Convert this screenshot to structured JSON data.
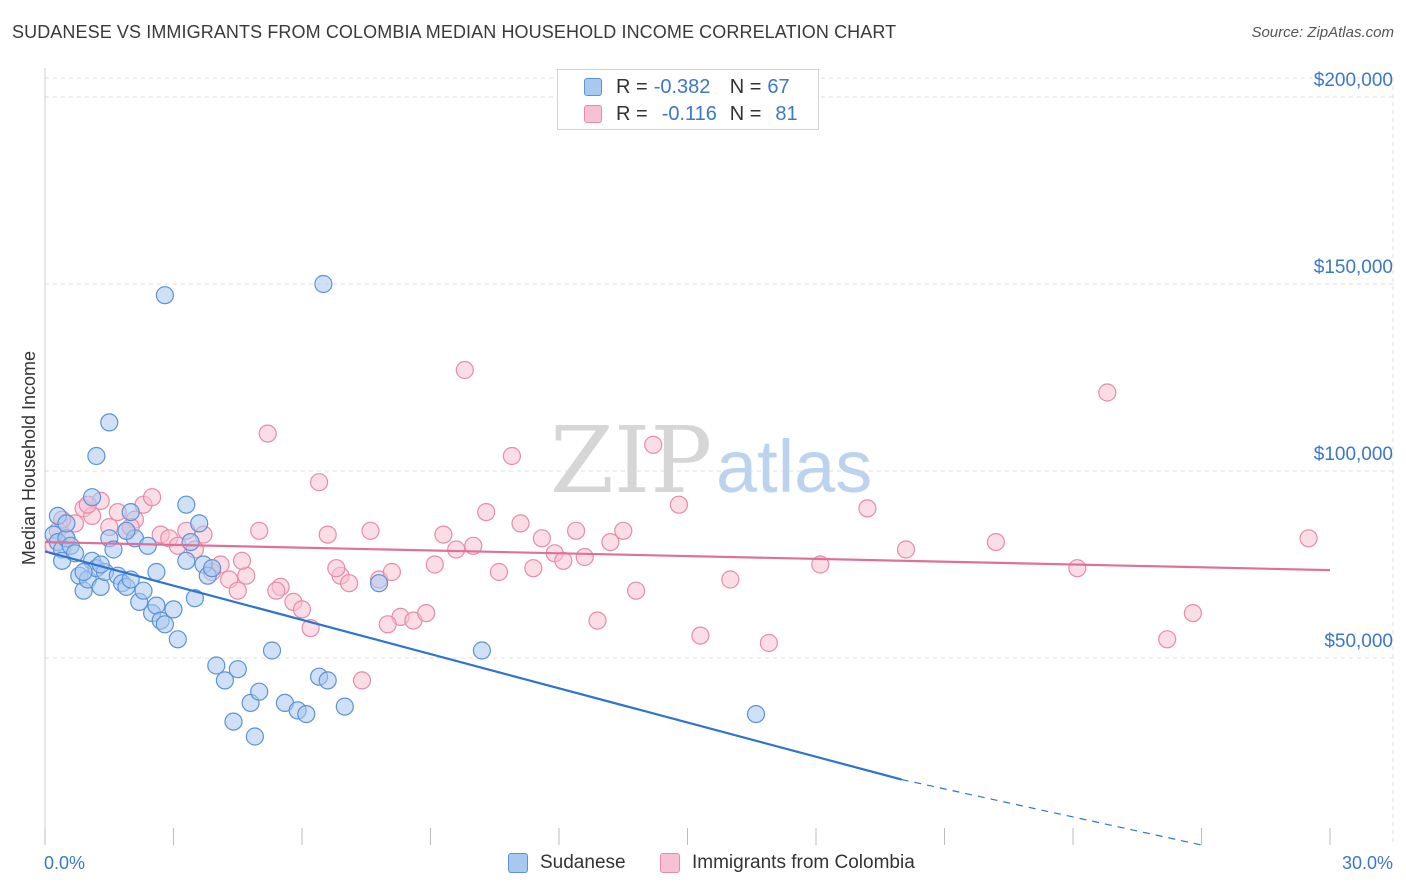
{
  "title": "SUDANESE VS IMMIGRANTS FROM COLOMBIA MEDIAN HOUSEHOLD INCOME CORRELATION CHART",
  "source": "Source: ZipAtlas.com",
  "watermark": {
    "zip": "ZIP",
    "atlas": "atlas"
  },
  "legend": {
    "rows": [
      {
        "r_label": "R =",
        "r_value": "-0.382",
        "n_label": "N =",
        "n_value": "67"
      },
      {
        "r_label": "R =",
        "r_value": "-0.116",
        "n_label": "N =",
        "n_value": "81"
      }
    ]
  },
  "bottom_legend": {
    "series1": "Sudanese",
    "series2": "Immigrants from Colombia"
  },
  "colors": {
    "blue_fill": "#a9c8f0",
    "blue_stroke": "#5b93d6",
    "blue_line": "#2e74d0",
    "pink_fill": "#f7c1d2",
    "pink_stroke": "#e88aaa",
    "pink_line": "#e0709a",
    "grid": "#dcdcdc",
    "axis_text": "#3b78c8"
  },
  "chart_data": {
    "type": "scatter",
    "title": "SUDANESE VS IMMIGRANTS FROM COLOMBIA MEDIAN HOUSEHOLD INCOME CORRELATION CHART",
    "xlabel": "",
    "ylabel": "Median Household Income",
    "xlim": [
      0,
      30
    ],
    "ylim": [
      0,
      200000
    ],
    "x_tick_labels": [
      "0.0%",
      "30.0%"
    ],
    "y_ticks": [
      50000,
      100000,
      150000,
      200000
    ],
    "y_tick_labels": [
      "$50,000",
      "$100,000",
      "$150,000",
      "$200,000"
    ],
    "series": [
      {
        "name": "Sudanese",
        "r": -0.382,
        "n": 67,
        "trend": {
          "x0": 0,
          "y0": 78500,
          "x1": 20,
          "y1": 17500,
          "dash_to_x": 27,
          "dash_to_y": 0
        },
        "points": [
          [
            0.2,
            83000
          ],
          [
            0.3,
            81000
          ],
          [
            0.4,
            79000
          ],
          [
            0.5,
            82000
          ],
          [
            0.6,
            80000
          ],
          [
            0.8,
            72000
          ],
          [
            0.9,
            68000
          ],
          [
            1.0,
            71000
          ],
          [
            1.1,
            76000
          ],
          [
            1.2,
            74000
          ],
          [
            1.3,
            69000
          ],
          [
            1.4,
            73000
          ],
          [
            1.5,
            82000
          ],
          [
            1.6,
            79000
          ],
          [
            1.7,
            72000
          ],
          [
            1.8,
            70000
          ],
          [
            1.9,
            69000
          ],
          [
            2.0,
            71000
          ],
          [
            2.2,
            65000
          ],
          [
            2.3,
            68000
          ],
          [
            2.5,
            62000
          ],
          [
            2.6,
            64000
          ],
          [
            2.7,
            60000
          ],
          [
            2.8,
            59000
          ],
          [
            3.0,
            63000
          ],
          [
            3.1,
            55000
          ],
          [
            3.3,
            76000
          ],
          [
            3.5,
            66000
          ],
          [
            3.7,
            75000
          ],
          [
            3.8,
            72000
          ],
          [
            4.0,
            48000
          ],
          [
            4.2,
            44000
          ],
          [
            4.5,
            47000
          ],
          [
            4.8,
            38000
          ],
          [
            5.0,
            41000
          ],
          [
            5.3,
            52000
          ],
          [
            5.6,
            38000
          ],
          [
            5.9,
            36000
          ],
          [
            6.1,
            35000
          ],
          [
            6.4,
            45000
          ],
          [
            6.6,
            44000
          ],
          [
            7.0,
            37000
          ],
          [
            0.3,
            88000
          ],
          [
            0.5,
            86000
          ],
          [
            1.2,
            104000
          ],
          [
            1.5,
            113000
          ],
          [
            2.8,
            147000
          ],
          [
            6.5,
            150000
          ],
          [
            1.1,
            93000
          ],
          [
            3.3,
            91000
          ],
          [
            3.6,
            86000
          ],
          [
            2.1,
            82000
          ],
          [
            2.4,
            80000
          ],
          [
            1.3,
            75000
          ],
          [
            0.9,
            73000
          ],
          [
            4.4,
            33000
          ],
          [
            4.9,
            29000
          ],
          [
            3.4,
            81000
          ],
          [
            7.8,
            70000
          ],
          [
            10.2,
            52000
          ],
          [
            16.6,
            35000
          ],
          [
            0.4,
            76000
          ],
          [
            0.7,
            78000
          ],
          [
            1.9,
            84000
          ],
          [
            2.0,
            89000
          ],
          [
            2.6,
            73000
          ],
          [
            3.9,
            74000
          ]
        ]
      },
      {
        "name": "Immigrants from Colombia",
        "r": -0.116,
        "n": 81,
        "trend": {
          "x0": 0,
          "y0": 81000,
          "x1": 30,
          "y1": 73500
        },
        "points": [
          [
            0.3,
            84000
          ],
          [
            0.5,
            82000
          ],
          [
            0.7,
            86000
          ],
          [
            0.9,
            90000
          ],
          [
            1.1,
            88000
          ],
          [
            1.3,
            92000
          ],
          [
            1.5,
            85000
          ],
          [
            1.7,
            89000
          ],
          [
            1.9,
            84000
          ],
          [
            2.1,
            87000
          ],
          [
            2.3,
            91000
          ],
          [
            2.5,
            93000
          ],
          [
            2.7,
            83000
          ],
          [
            2.9,
            82000
          ],
          [
            3.1,
            80000
          ],
          [
            3.3,
            84000
          ],
          [
            3.5,
            79000
          ],
          [
            3.7,
            83000
          ],
          [
            3.9,
            73000
          ],
          [
            4.1,
            75000
          ],
          [
            4.3,
            71000
          ],
          [
            4.5,
            68000
          ],
          [
            4.7,
            72000
          ],
          [
            5.0,
            84000
          ],
          [
            5.2,
            110000
          ],
          [
            5.5,
            69000
          ],
          [
            5.8,
            65000
          ],
          [
            6.0,
            63000
          ],
          [
            6.2,
            58000
          ],
          [
            6.4,
            97000
          ],
          [
            6.6,
            83000
          ],
          [
            6.9,
            72000
          ],
          [
            7.1,
            70000
          ],
          [
            7.4,
            44000
          ],
          [
            7.6,
            84000
          ],
          [
            7.8,
            71000
          ],
          [
            8.1,
            73000
          ],
          [
            8.3,
            61000
          ],
          [
            8.6,
            60000
          ],
          [
            8.9,
            62000
          ],
          [
            9.1,
            75000
          ],
          [
            9.3,
            83000
          ],
          [
            9.6,
            79000
          ],
          [
            9.8,
            127000
          ],
          [
            10.0,
            80000
          ],
          [
            10.3,
            89000
          ],
          [
            10.6,
            73000
          ],
          [
            10.9,
            104000
          ],
          [
            11.1,
            86000
          ],
          [
            11.4,
            74000
          ],
          [
            11.6,
            82000
          ],
          [
            11.9,
            78000
          ],
          [
            12.1,
            76000
          ],
          [
            12.4,
            84000
          ],
          [
            12.6,
            77000
          ],
          [
            12.9,
            60000
          ],
          [
            13.2,
            81000
          ],
          [
            13.5,
            84000
          ],
          [
            13.8,
            68000
          ],
          [
            14.2,
            107000
          ],
          [
            14.8,
            91000
          ],
          [
            15.3,
            56000
          ],
          [
            16.0,
            71000
          ],
          [
            16.9,
            54000
          ],
          [
            18.1,
            75000
          ],
          [
            19.2,
            90000
          ],
          [
            20.1,
            79000
          ],
          [
            22.2,
            81000
          ],
          [
            24.1,
            74000
          ],
          [
            24.8,
            121000
          ],
          [
            26.2,
            55000
          ],
          [
            26.8,
            62000
          ],
          [
            29.5,
            82000
          ],
          [
            0.2,
            80000
          ],
          [
            0.4,
            87000
          ],
          [
            1.0,
            91000
          ],
          [
            2.0,
            85000
          ],
          [
            4.6,
            76000
          ],
          [
            6.8,
            74000
          ],
          [
            5.4,
            68000
          ],
          [
            8.0,
            59000
          ]
        ]
      }
    ]
  }
}
